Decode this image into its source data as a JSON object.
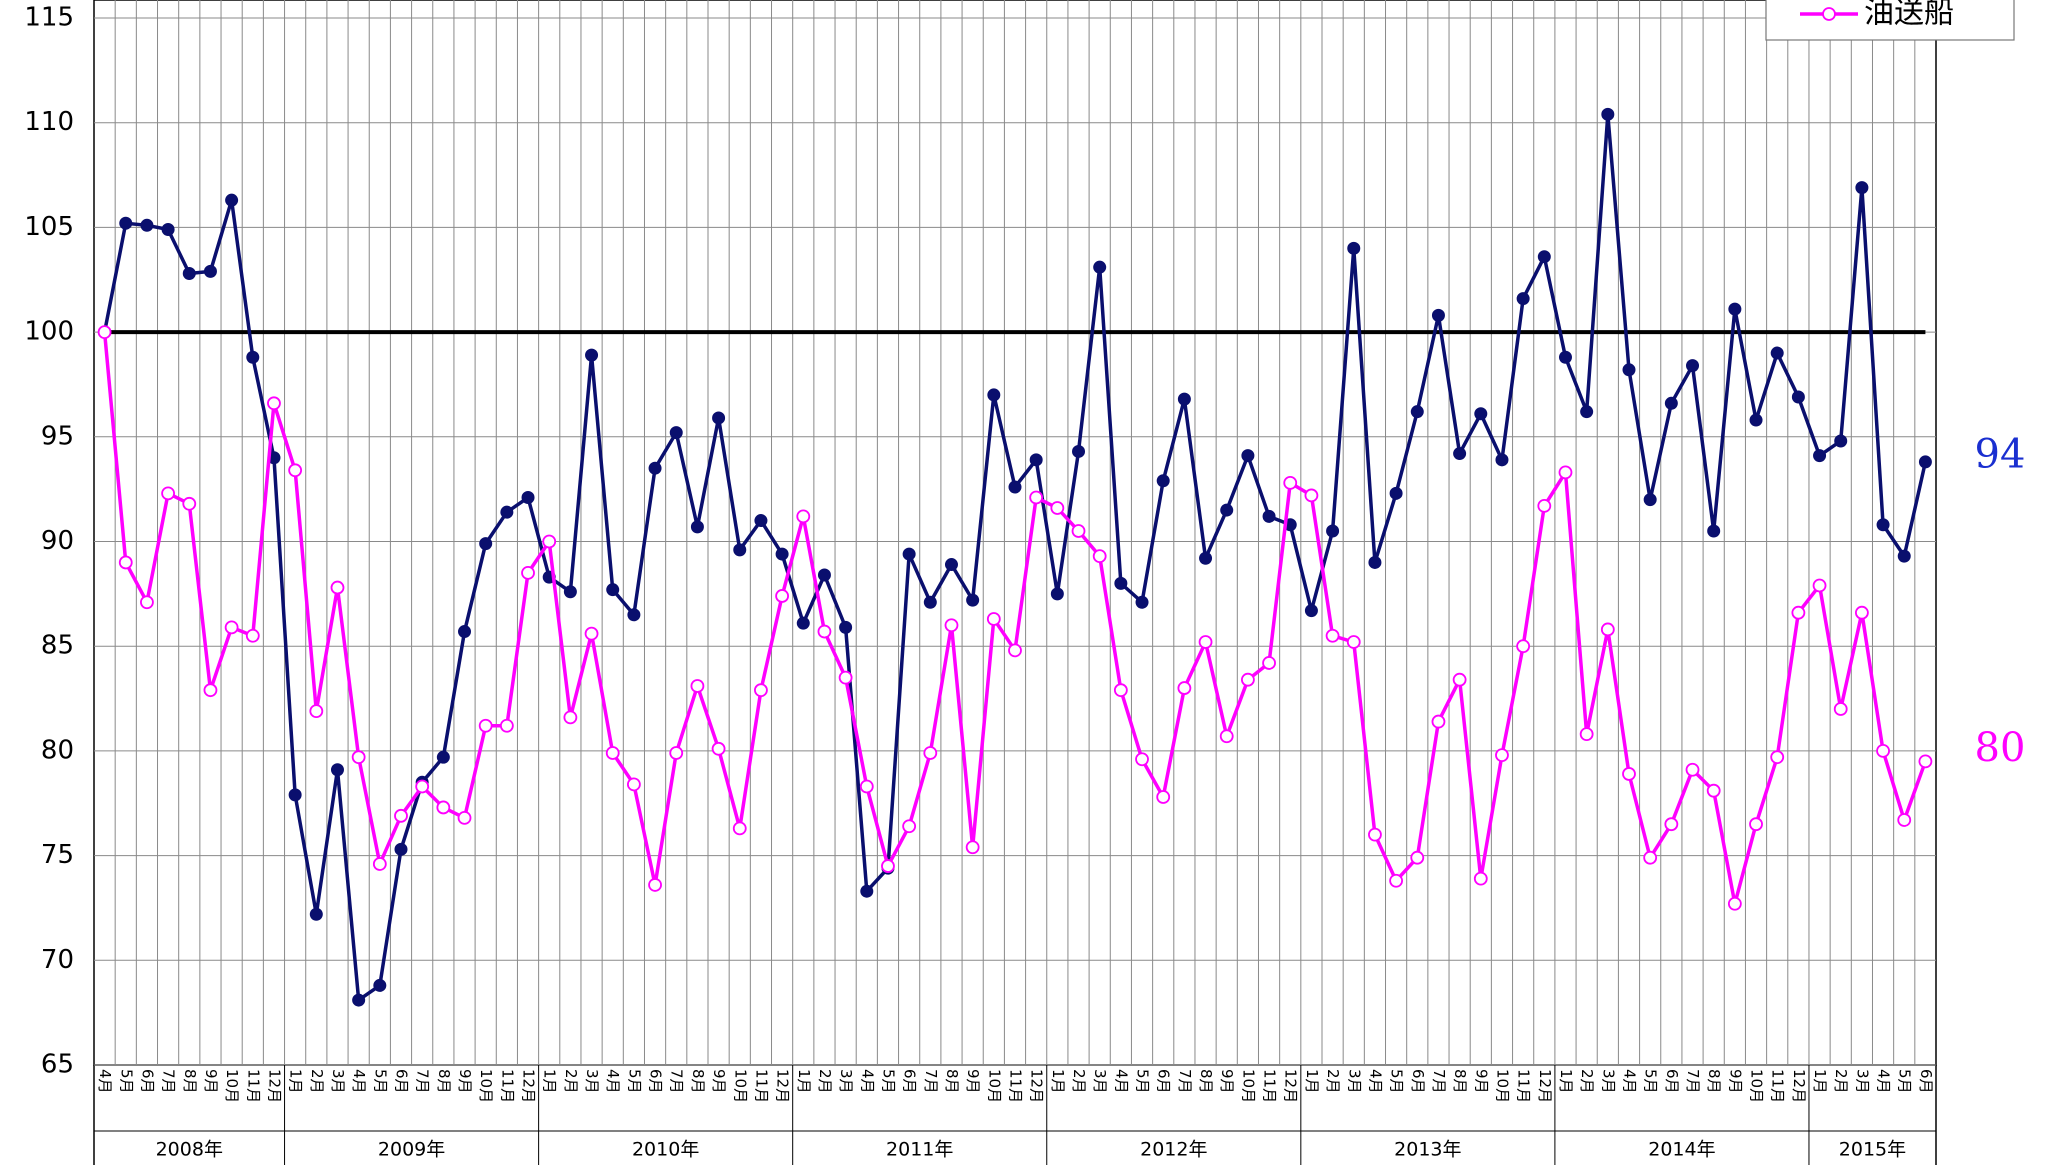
{
  "chart_data": {
    "type": "line",
    "categories": [
      "4月",
      "5月",
      "6月",
      "7月",
      "8月",
      "9月",
      "10月",
      "11月",
      "12月",
      "1月",
      "2月",
      "3月",
      "4月",
      "5月",
      "6月",
      "7月",
      "8月",
      "9月",
      "10月",
      "11月",
      "12月",
      "1月",
      "2月",
      "3月",
      "4月",
      "5月",
      "6月",
      "7月",
      "8月",
      "9月",
      "10月",
      "11月",
      "12月",
      "1月",
      "2月",
      "3月",
      "4月",
      "5月",
      "6月",
      "7月",
      "8月",
      "9月",
      "10月",
      "11月",
      "12月",
      "1月",
      "2月",
      "3月",
      "4月",
      "5月",
      "6月",
      "7月",
      "8月",
      "9月",
      "10月",
      "11月",
      "12月",
      "1月",
      "2月",
      "3月",
      "4月",
      "5月",
      "6月",
      "7月",
      "8月",
      "9月",
      "10月",
      "11月",
      "12月",
      "1月",
      "2月",
      "3月",
      "4月",
      "5月",
      "6月",
      "7月",
      "8月",
      "9月",
      "10月",
      "11月",
      "12月",
      "1月",
      "2月",
      "3月",
      "4月",
      "5月",
      "6月"
    ],
    "x_groups": [
      "2008年",
      "2009年",
      "2010年",
      "2011年",
      "2012年",
      "2013年",
      "2014年",
      "2015年"
    ],
    "series": [
      {
        "color": "#0a0f6e",
        "marker": "filled",
        "end_label": 94,
        "end_label_color": "#1a2fd0",
        "values": [
          100,
          105.2,
          105.1,
          104.9,
          102.8,
          102.9,
          106.3,
          98.8,
          94.0,
          77.9,
          72.2,
          79.1,
          68.1,
          68.8,
          75.3,
          78.5,
          79.7,
          85.7,
          89.9,
          91.4,
          92.1,
          88.3,
          87.6,
          98.9,
          87.7,
          86.5,
          93.5,
          95.2,
          90.7,
          95.9,
          89.6,
          91.0,
          89.4,
          86.1,
          88.4,
          85.9,
          73.3,
          74.4,
          89.4,
          87.1,
          88.9,
          87.2,
          97.0,
          92.6,
          93.9,
          87.5,
          94.3,
          103.1,
          88.0,
          87.1,
          92.9,
          96.8,
          89.2,
          91.5,
          94.1,
          91.2,
          90.8,
          86.7,
          90.5,
          104.0,
          89.0,
          92.3,
          96.2,
          100.8,
          94.2,
          96.1,
          93.9,
          101.6,
          103.6,
          98.8,
          96.2,
          110.4,
          98.2,
          92.0,
          96.6,
          98.4,
          90.5,
          101.1,
          95.8,
          99.0,
          96.9,
          94.1,
          94.8,
          106.9,
          90.8,
          89.3,
          93.8
        ]
      },
      {
        "name": "油送船",
        "color": "#ff00ff",
        "marker": "open",
        "end_label": 80,
        "end_label_color": "#ff00ff",
        "values": [
          100,
          89.0,
          87.1,
          92.3,
          91.8,
          82.9,
          85.9,
          85.5,
          96.6,
          93.4,
          81.9,
          87.8,
          79.7,
          74.6,
          76.9,
          78.3,
          77.3,
          76.8,
          81.2,
          81.2,
          88.5,
          90.0,
          81.6,
          85.6,
          79.9,
          78.4,
          73.6,
          79.9,
          83.1,
          80.1,
          76.3,
          82.9,
          87.4,
          91.2,
          85.7,
          83.5,
          78.3,
          74.5,
          76.4,
          79.9,
          86.0,
          75.4,
          86.3,
          84.8,
          92.1,
          91.6,
          90.5,
          89.3,
          82.9,
          79.6,
          77.8,
          83.0,
          85.2,
          80.7,
          83.4,
          84.2,
          92.8,
          92.2,
          85.5,
          85.2,
          76.0,
          73.8,
          74.9,
          81.4,
          83.4,
          73.9,
          79.8,
          85.0,
          91.7,
          93.3,
          80.8,
          85.8,
          78.9,
          74.9,
          76.5,
          79.1,
          78.1,
          72.7,
          76.5,
          79.7,
          86.6,
          87.9,
          82.0,
          86.6,
          80.0,
          76.7,
          79.5
        ]
      }
    ],
    "reference_line": 100,
    "ylim": [
      65,
      115
    ],
    "yticks": [
      65,
      70,
      75,
      80,
      85,
      90,
      95,
      100,
      105,
      110,
      115
    ],
    "grid": true
  }
}
